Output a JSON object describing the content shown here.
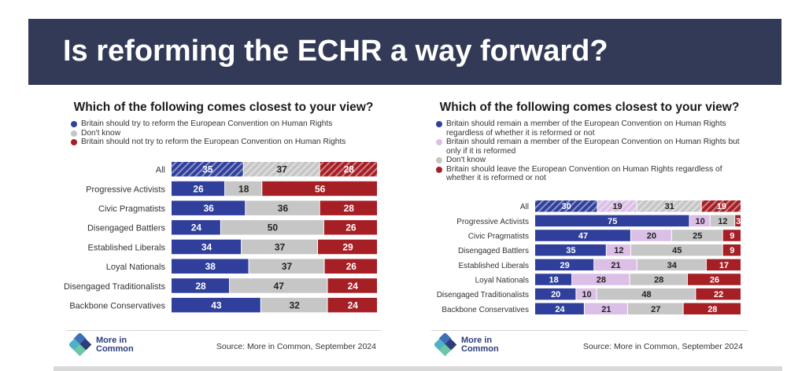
{
  "header": {
    "title": "Is reforming the ECHR a way forward?"
  },
  "logo": {
    "text_line1": "More in",
    "text_line2": "Common"
  },
  "colors": {
    "banner": "#333a57",
    "blue": "#2f3f9b",
    "pink": "#dbbfe6",
    "grey": "#c6c6c6",
    "red": "#a51f25"
  },
  "panels": [
    {
      "title": "Which of the following comes closest to your view?",
      "source": "Source: More in Common, September 2024",
      "legend": [
        {
          "label": "Britain should try to reform the European Convention on Human Rights",
          "color": "#2f3f9b"
        },
        {
          "label": "Don't know",
          "color": "#c6c6c6"
        },
        {
          "label": "Britain should not try to reform the European Convention on Human Rights",
          "color": "#a51f25"
        }
      ]
    },
    {
      "title": "Which of the following comes closest to your view?",
      "source": "Source: More in Common, September 2024",
      "legend": [
        {
          "label": "Britain should remain a member of the European Convention on Human Rights regardless of whether it is reformed or not",
          "color": "#2f3f9b"
        },
        {
          "label": "Britain should remain a member of the European Convention on Human Rights but only if it is reformed",
          "color": "#dbbfe6"
        },
        {
          "label": "Don't know",
          "color": "#c6c6c6"
        },
        {
          "label": "Britain should leave the European Convention on Human Rights regardless of whether it is reformed or not",
          "color": "#a51f25"
        }
      ]
    }
  ],
  "chart_data": [
    {
      "type": "bar",
      "stacked": true,
      "orientation": "horizontal",
      "categories": [
        "All",
        "Progressive Activists",
        "Civic Pragmatists",
        "Disengaged Battlers",
        "Established Liberals",
        "Loyal Nationals",
        "Disengaged Traditionalists",
        "Backbone Conservatives"
      ],
      "series": [
        {
          "name": "Britain should try to reform the European Convention on Human Rights",
          "color": "#2f3f9b",
          "values": [
            35,
            26,
            36,
            24,
            34,
            38,
            28,
            43
          ]
        },
        {
          "name": "Don't know",
          "color": "#c6c6c6",
          "values": [
            37,
            18,
            36,
            50,
            37,
            37,
            47,
            32
          ]
        },
        {
          "name": "Britain should not try to reform the European Convention on Human Rights",
          "color": "#a51f25",
          "values": [
            28,
            56,
            28,
            26,
            29,
            26,
            24,
            24
          ]
        }
      ],
      "hatched_rows": [
        "All"
      ]
    },
    {
      "type": "bar",
      "stacked": true,
      "orientation": "horizontal",
      "categories": [
        "All",
        "Progressive Activists",
        "Civic Pragmatists",
        "Disengaged Battlers",
        "Established Liberals",
        "Loyal Nationals",
        "Disengaged Traditionalists",
        "Backbone Conservatives"
      ],
      "series": [
        {
          "name": "Britain should remain a member of the European Convention on Human Rights regardless of whether it is reformed or not",
          "color": "#2f3f9b",
          "values": [
            30,
            75,
            47,
            35,
            29,
            18,
            20,
            24
          ]
        },
        {
          "name": "Britain should remain a member of the European Convention on Human Rights but only if it is reformed",
          "color": "#dbbfe6",
          "values": [
            19,
            10,
            20,
            12,
            21,
            28,
            10,
            21
          ]
        },
        {
          "name": "Don't know",
          "color": "#c6c6c6",
          "values": [
            31,
            12,
            25,
            45,
            34,
            28,
            48,
            27
          ]
        },
        {
          "name": "Britain should leave the European Convention on Human Rights regardless of whether it is reformed or not",
          "color": "#a51f25",
          "values": [
            19,
            3,
            9,
            9,
            17,
            26,
            22,
            28
          ]
        }
      ],
      "hatched_rows": [
        "All"
      ]
    }
  ]
}
